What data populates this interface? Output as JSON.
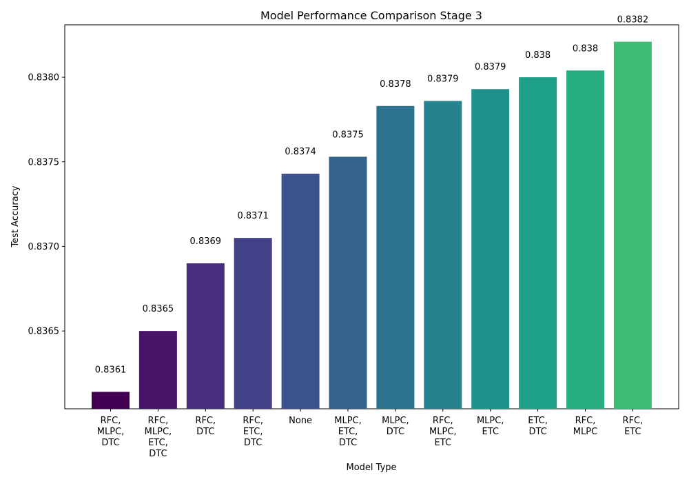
{
  "chart_data": {
    "type": "bar",
    "title": "Model Performance Comparison Stage 3",
    "xlabel": "Model Type",
    "ylabel": "Test Accuracy",
    "categories": [
      "RFC,\nMLPC,\nDTC",
      "RFC,\nMLPC,\nETC,\nDTC",
      "RFC,\nDTC",
      "RFC,\nETC,\nDTC",
      "None",
      "MLPC,\nETC,\nDTC",
      "MLPC,\nDTC",
      "RFC,\nMLPC,\nETC",
      "MLPC,\nETC",
      "ETC,\nDTC",
      "RFC,\nMLPC",
      "RFC,\nETC"
    ],
    "values": [
      0.83614,
      0.8365,
      0.8369,
      0.83705,
      0.83743,
      0.83753,
      0.83783,
      0.83786,
      0.83793,
      0.838,
      0.83804,
      0.83821
    ],
    "value_labels": [
      "0.8361",
      "0.8365",
      "0.8369",
      "0.8371",
      "0.8374",
      "0.8375",
      "0.8378",
      "0.8379",
      "0.8379",
      "0.838",
      "0.838",
      "0.8382"
    ],
    "yticks": [
      0.8365,
      0.837,
      0.8375,
      0.838
    ],
    "ytick_labels": [
      "0.8365",
      "0.8370",
      "0.8375",
      "0.8380"
    ],
    "ylim": [
      0.83604,
      0.83831
    ],
    "grid": false,
    "legend": "none",
    "colors": [
      "#440154",
      "#481467",
      "#472d7b",
      "#424086",
      "#3b528b",
      "#33638d",
      "#2c728e",
      "#26828e",
      "#21918c",
      "#1fa088",
      "#28ae80",
      "#3fbc73"
    ]
  }
}
